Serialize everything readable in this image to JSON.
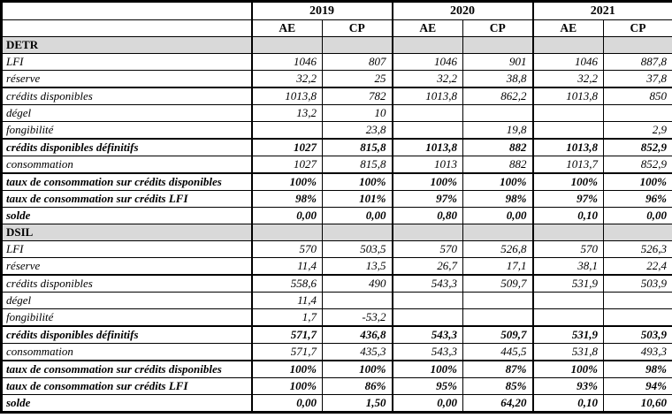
{
  "table": {
    "corner": "",
    "years": [
      "2019",
      "2020",
      "2021"
    ],
    "col_headers": [
      "AE",
      "CP",
      "AE",
      "CP",
      "AE",
      "CP"
    ],
    "colors": {
      "section_bg": "#d9d9d9",
      "border": "#000000"
    },
    "sections": [
      {
        "title": "DETR",
        "rows": [
          {
            "label": "LFI",
            "style": "normal",
            "values": [
              "1046",
              "807",
              "1046",
              "901",
              "1046",
              "887,8"
            ]
          },
          {
            "label": "réserve",
            "style": "normal",
            "values": [
              "32,2",
              "25",
              "32,2",
              "38,8",
              "32,2",
              "37,8"
            ]
          },
          {
            "label": "crédits disponibles",
            "style": "normal",
            "heavy_top": true,
            "values": [
              "1013,8",
              "782",
              "1013,8",
              "862,2",
              "1013,8",
              "850"
            ]
          },
          {
            "label": "dégel",
            "style": "normal",
            "values": [
              "13,2",
              "10",
              "",
              "",
              "",
              ""
            ]
          },
          {
            "label": "fongibilité",
            "style": "normal",
            "values": [
              "",
              "23,8",
              "",
              "19,8",
              "",
              "2,9"
            ]
          },
          {
            "label": "crédits disponibles définitifs",
            "style": "bold",
            "heavy_top": true,
            "values": [
              "1027",
              "815,8",
              "1013,8",
              "882",
              "1013,8",
              "852,9"
            ]
          },
          {
            "label": "consommation",
            "style": "normal",
            "values": [
              "1027",
              "815,8",
              "1013",
              "882",
              "1013,7",
              "852,9"
            ]
          },
          {
            "label": "taux de consommation sur crédits disponibles",
            "style": "bold",
            "heavy_top": true,
            "values": [
              "100%",
              "100%",
              "100%",
              "100%",
              "100%",
              "100%"
            ]
          },
          {
            "label": "taux de consommation sur crédits LFI",
            "style": "bold",
            "values": [
              "98%",
              "101%",
              "97%",
              "98%",
              "97%",
              "96%"
            ]
          },
          {
            "label": "solde",
            "style": "bold",
            "values": [
              "0,00",
              "0,00",
              "0,80",
              "0,00",
              "0,10",
              "0,00"
            ]
          }
        ]
      },
      {
        "title": "DSIL",
        "rows": [
          {
            "label": "LFI",
            "style": "normal",
            "values": [
              "570",
              "503,5",
              "570",
              "526,8",
              "570",
              "526,3"
            ]
          },
          {
            "label": "réserve",
            "style": "normal",
            "values": [
              "11,4",
              "13,5",
              "26,7",
              "17,1",
              "38,1",
              "22,4"
            ]
          },
          {
            "label": "crédits disponibles",
            "style": "normal",
            "heavy_top": true,
            "values": [
              "558,6",
              "490",
              "543,3",
              "509,7",
              "531,9",
              "503,9"
            ]
          },
          {
            "label": "dégel",
            "style": "normal",
            "values": [
              "11,4",
              "",
              "",
              "",
              "",
              ""
            ]
          },
          {
            "label": "fongibilité",
            "style": "normal",
            "values": [
              "1,7",
              "-53,2",
              "",
              "",
              "",
              ""
            ]
          },
          {
            "label": "crédits disponibles définitifs",
            "style": "bold",
            "heavy_top": true,
            "values": [
              "571,7",
              "436,8",
              "543,3",
              "509,7",
              "531,9",
              "503,9"
            ]
          },
          {
            "label": "consommation",
            "style": "normal",
            "values": [
              "571,7",
              "435,3",
              "543,3",
              "445,5",
              "531,8",
              "493,3"
            ]
          },
          {
            "label": "taux de consommation sur crédits disponibles",
            "style": "bold",
            "heavy_top": true,
            "values": [
              "100%",
              "100%",
              "100%",
              "87%",
              "100%",
              "98%"
            ]
          },
          {
            "label": "taux de consommation sur crédits LFI",
            "style": "bold",
            "values": [
              "100%",
              "86%",
              "95%",
              "85%",
              "93%",
              "94%"
            ]
          },
          {
            "label": "solde",
            "style": "bold",
            "values": [
              "0,00",
              "1,50",
              "0,00",
              "64,20",
              "0,10",
              "10,60"
            ]
          }
        ]
      }
    ]
  }
}
